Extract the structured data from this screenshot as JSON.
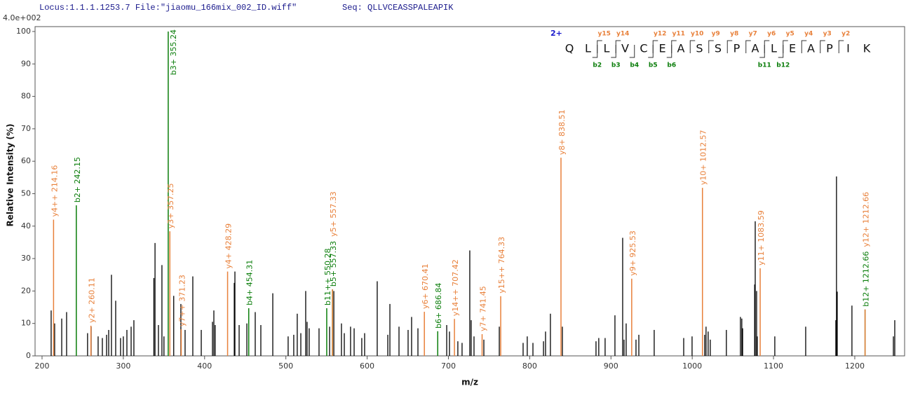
{
  "chart_data": {
    "type": "stem",
    "header": {
      "locus": "Locus:1.1.1.1253.7 File:\"jiaomu_166mix_002_ID.wiff\"",
      "seq": "Seq: QLLVCEASSPALEAPIK"
    },
    "scale_label": "4.0e+002",
    "xlabel": "m/z",
    "ylabel": "Relative Intensity (%)",
    "xlim": [
      191.4,
      1261.3
    ],
    "ylim": [
      0,
      101.5
    ],
    "xticks": [
      200,
      300,
      400,
      500,
      600,
      700,
      800,
      900,
      1000,
      1100,
      1200
    ],
    "yticks": [
      0,
      10,
      20,
      30,
      40,
      50,
      60,
      70,
      80,
      90,
      100
    ],
    "sequence": {
      "charge": "2+",
      "residues": [
        "Q",
        "L",
        "L",
        "V",
        "C",
        "E",
        "A",
        "S",
        "S",
        "P",
        "A",
        "L",
        "E",
        "A",
        "P",
        "I",
        "K"
      ],
      "y_ions": [
        "y15",
        "y14",
        "y12",
        "y11",
        "y10",
        "y9",
        "y8",
        "y7",
        "y6",
        "y5",
        "y4",
        "y3",
        "y2"
      ],
      "b_ions": [
        "b2",
        "b3",
        "b4",
        "b5",
        "b6",
        "b11",
        "b12"
      ],
      "y_color": "#e8803a",
      "b_color": "#0a7d0a"
    },
    "peaks": {
      "color": "#000000",
      "x": [
        211.2,
        215.5,
        224.2,
        230.2,
        256,
        260.4,
        269,
        274.2,
        279.4,
        282,
        285.4,
        290.6,
        296.6,
        300,
        304.4,
        309.6,
        313,
        337.6,
        339,
        343.2,
        347.5,
        350,
        362,
        370.8,
        376,
        385.5,
        395.9,
        409.7,
        411.4,
        413,
        436.5,
        437.3,
        442.5,
        452,
        462.3,
        469.2,
        483.9,
        502.8,
        509.7,
        514,
        518.4,
        524.4,
        526.1,
        528.7,
        540.8,
        553.8,
        559,
        568.4,
        571.9,
        579.6,
        584,
        593.4,
        596.9,
        612.4,
        625.4,
        628,
        639.2,
        650.4,
        654.7,
        662.5,
        697.9,
        701.3,
        711.6,
        716.8,
        726.3,
        728,
        731.5,
        743.6,
        762.6,
        791.9,
        797,
        804,
        817,
        819.5,
        825.5,
        840.2,
        881.6,
        885,
        892.8,
        904.9,
        914.4,
        916.1,
        918.7,
        930.8,
        934.3,
        953.2,
        989.5,
        999.8,
        1015.3,
        1017,
        1019.6,
        1022.2,
        1042,
        1059.3,
        1061,
        1062,
        1076.8,
        1077.5,
        1079.2,
        1080,
        1101.6,
        1139.6,
        1176.7,
        1177.5,
        1178.4,
        1196.5,
        1247.5,
        1249.2
      ],
      "values": [
        14,
        10,
        11.5,
        13.5,
        7,
        9,
        6,
        5.5,
        6.5,
        8,
        25,
        17,
        5.5,
        6,
        8,
        9,
        11,
        24,
        34.8,
        9.5,
        28,
        6,
        18.5,
        16,
        8,
        24.5,
        8,
        10.5,
        14,
        9.5,
        22.5,
        26,
        9.5,
        10,
        13.5,
        9.5,
        19.3,
        6,
        6.5,
        13,
        7,
        20,
        10.5,
        8.5,
        8.5,
        9,
        20,
        10,
        7,
        9,
        8.5,
        5.5,
        7,
        23,
        6.5,
        16,
        9,
        8,
        12,
        8.5,
        9.5,
        7.5,
        4.5,
        4,
        32.5,
        11,
        6,
        5,
        9,
        4,
        6,
        4,
        4.5,
        7.5,
        13,
        9,
        4.5,
        5.5,
        5.5,
        12.5,
        36.4,
        5,
        10,
        5,
        6.5,
        8,
        5.5,
        6,
        6.5,
        9,
        7.5,
        5,
        8,
        12,
        11.5,
        8.5,
        22,
        41.5,
        20,
        6,
        6,
        9,
        11,
        55.3,
        19.8,
        15.5,
        6,
        11
      ]
    },
    "annotations": [
      {
        "label": "y4++ 214.16",
        "color": "#e8803a",
        "x": 214.16,
        "value": 42
      },
      {
        "label": "b2+ 242.15",
        "color": "#0a7d0a",
        "x": 242.15,
        "value": 46.4
      },
      {
        "label": "y2+ 260.11",
        "color": "#e8803a",
        "x": 260.11,
        "value": 9.3
      },
      {
        "label": "b3+ 355.24",
        "color": "#0a7d0a",
        "x": 355.24,
        "value": 100
      },
      {
        "label": "y3+ 357.25",
        "color": "#e8803a",
        "x": 357.25,
        "value": 38.4
      },
      {
        "label": "y7++ 371.23",
        "color": "#e8803a",
        "x": 371.23,
        "value": 8.2
      },
      {
        "label": "y4+ 428.29",
        "color": "#e8803a",
        "x": 428.29,
        "value": 26
      },
      {
        "label": "b4+ 454.31",
        "color": "#0a7d0a",
        "x": 454.31,
        "value": 14.7
      },
      {
        "label": "b11++ 550.28",
        "color": "#0a7d0a",
        "x": 550.28,
        "value": 14.7
      },
      {
        "label": "b5+ 557.33",
        "color": "#0a7d0a",
        "x": 557.33,
        "value": 20.5
      },
      {
        "label": "y5+ 557.33",
        "color": "#e8803a",
        "x": 557.33,
        "value": 20.5
      },
      {
        "label": "y6+ 670.41",
        "color": "#e8803a",
        "x": 670.41,
        "value": 13.6
      },
      {
        "label": "b6+ 686.84",
        "color": "#0a7d0a",
        "x": 686.84,
        "value": 7.6
      },
      {
        "label": "y14++ 707.42",
        "color": "#e8803a",
        "x": 707.42,
        "value": 11.4
      },
      {
        "label": "y7+ 741.45",
        "color": "#e8803a",
        "x": 741.45,
        "value": 6.7
      },
      {
        "label": "y15++ 764.33",
        "color": "#e8803a",
        "x": 764.33,
        "value": 18.4
      },
      {
        "label": "y8+ 838.51",
        "color": "#e8803a",
        "x": 838.51,
        "value": 61.1
      },
      {
        "label": "y9+ 925.53",
        "color": "#e8803a",
        "x": 925.53,
        "value": 23.8
      },
      {
        "label": "y10+ 1012.57",
        "color": "#e8803a",
        "x": 1012.57,
        "value": 51.8
      },
      {
        "label": "y11+ 1083.59",
        "color": "#e8803a",
        "x": 1083.59,
        "value": 27
      },
      {
        "label": "b12+ 1212.66",
        "color": "#0a7d0a",
        "x": 1212.66,
        "value": 14.3
      },
      {
        "label": "y12+ 1212.66",
        "color": "#e8803a",
        "x": 1212.66,
        "value": 14.3
      }
    ]
  }
}
